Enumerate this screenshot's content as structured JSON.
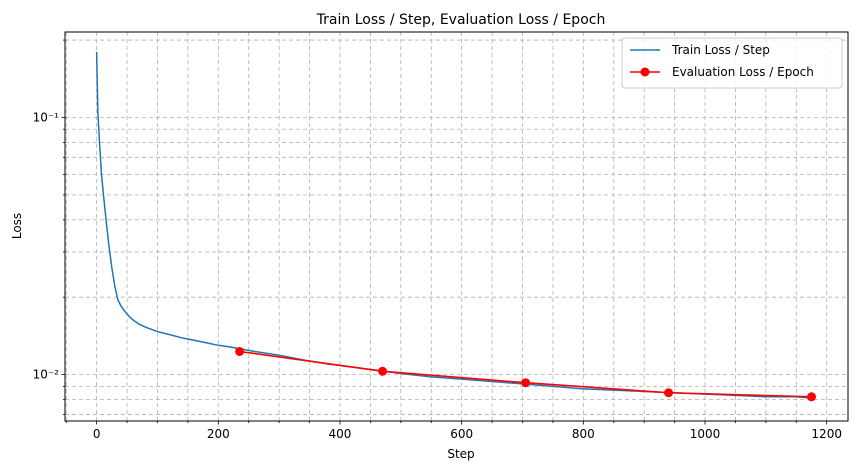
{
  "chart_data": {
    "type": "line",
    "title": "Train Loss / Step, Evaluation Loss / Epoch",
    "xlabel": "Step",
    "ylabel": "Loss",
    "xlim": [
      -52,
      1235
    ],
    "ylim": [
      0.0066,
      0.215
    ],
    "yscale": "log",
    "grid": "on (major and minor, dashed)",
    "legend_position": "top-right",
    "x_ticks": [
      0,
      200,
      400,
      600,
      800,
      1000,
      1200
    ],
    "x_tick_labels": [
      "0",
      "200",
      "400",
      "600",
      "800",
      "1000",
      "1200"
    ],
    "y_ticks": [
      0.01,
      0.1
    ],
    "y_tick_labels": [
      "10⁻²",
      "10⁻¹"
    ],
    "series": [
      {
        "name": "Train Loss / Step",
        "color": "#1f77b4",
        "x": [
          0,
          2,
          5,
          8,
          12,
          16,
          20,
          25,
          30,
          35,
          40,
          45,
          50,
          55,
          60,
          70,
          80,
          90,
          100,
          120,
          140,
          160,
          180,
          200,
          220,
          235,
          260,
          300,
          340,
          380,
          420,
          460,
          500,
          550,
          600,
          650,
          700,
          750,
          800,
          850,
          900,
          950,
          1000,
          1050,
          1100,
          1150,
          1175
        ],
        "y": [
          0.18,
          0.105,
          0.078,
          0.06,
          0.048,
          0.039,
          0.032,
          0.026,
          0.022,
          0.0195,
          0.0185,
          0.0178,
          0.0172,
          0.0167,
          0.0163,
          0.0157,
          0.0153,
          0.015,
          0.0147,
          0.0143,
          0.0139,
          0.0136,
          0.0133,
          0.013,
          0.0128,
          0.0126,
          0.0123,
          0.0119,
          0.0114,
          0.011,
          0.0107,
          0.0104,
          0.0101,
          0.0098,
          0.0096,
          0.0094,
          0.0092,
          0.009,
          0.0088,
          0.0087,
          0.0086,
          0.0085,
          0.0084,
          0.0083,
          0.0082,
          0.0082,
          0.0081
        ]
      },
      {
        "name": "Evaluation Loss / Epoch",
        "color": "#ff0000",
        "x": [
          235,
          470,
          705,
          940,
          1175
        ],
        "y": [
          0.0123,
          0.0103,
          0.0093,
          0.0085,
          0.0082
        ]
      }
    ]
  }
}
